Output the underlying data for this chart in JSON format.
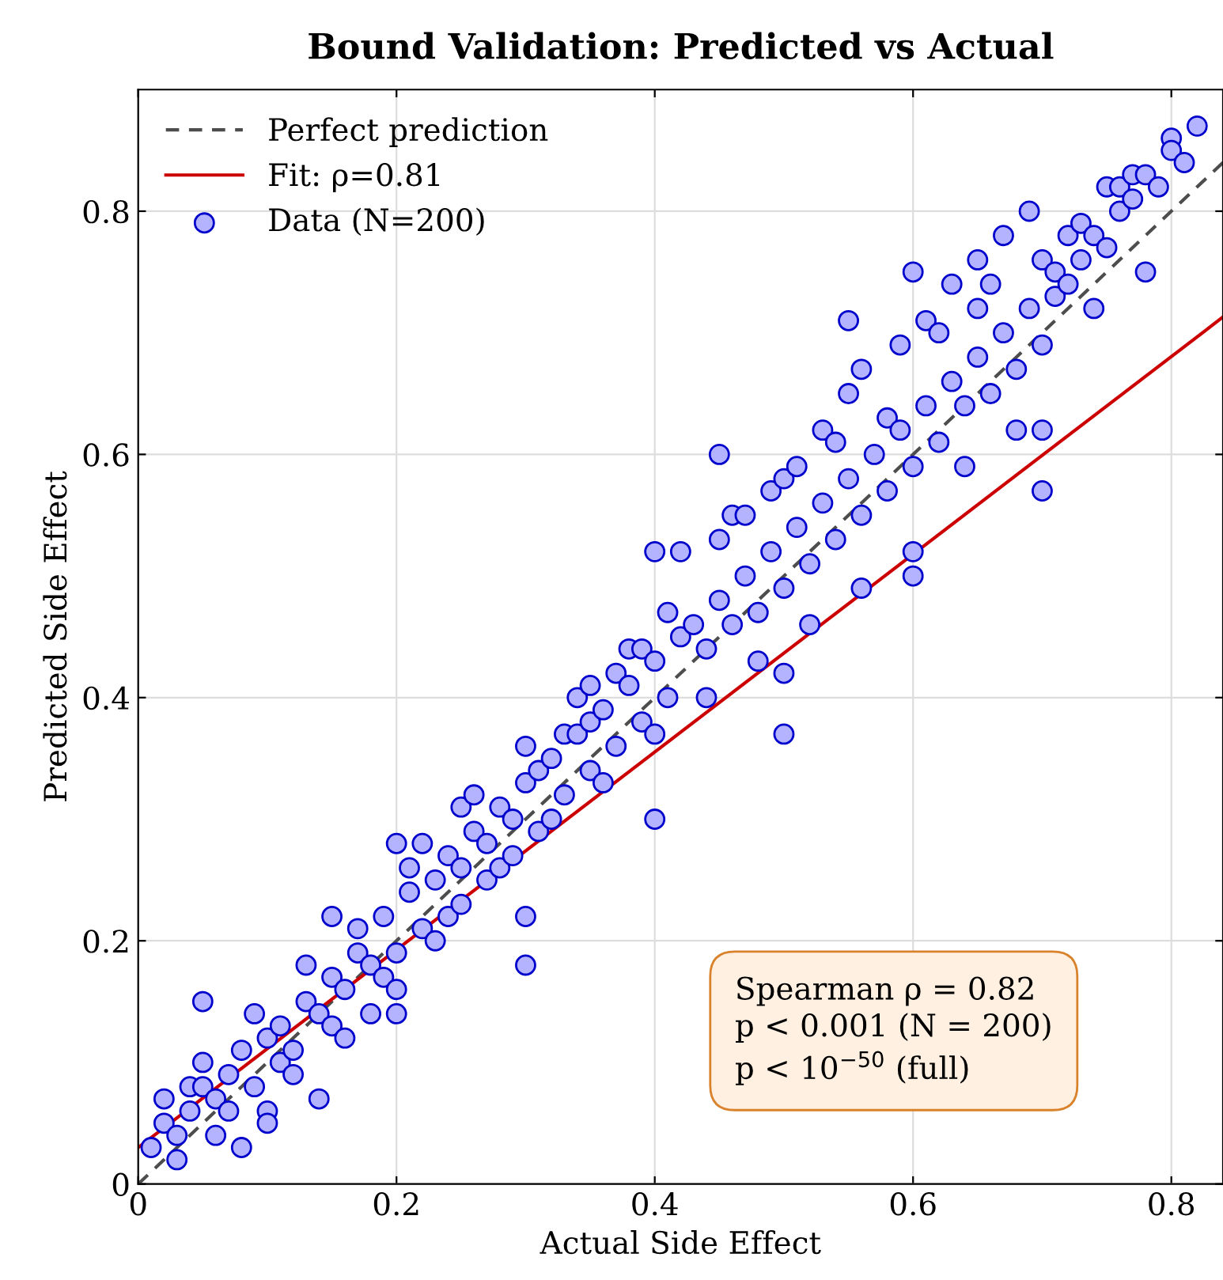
{
  "chart_data": {
    "type": "scatter",
    "title": "Bound Validation: Predicted vs Actual",
    "xlabel": "Actual Side Effect",
    "ylabel": "Predicted Side Effect",
    "xlim": [
      0,
      0.84
    ],
    "ylim": [
      0,
      0.9
    ],
    "xticks": [
      0,
      0.2,
      0.4,
      0.6,
      0.8
    ],
    "yticks": [
      0,
      0.2,
      0.4,
      0.6,
      0.8
    ],
    "grid": true,
    "legend": "top left",
    "annotations": [
      "Spearman ρ = 0.82\np < 0.001 (N = 200)\np < 10$^{−50}$ (full)"
    ],
    "series": [
      {
        "name": "Perfect prediction",
        "type": "line",
        "line_style": "dashed",
        "marker": "none",
        "color": "#4d4d4d",
        "x": [
          0,
          0.84
        ],
        "values": [
          0,
          0.84
        ]
      },
      {
        "name": "Fit: ρ=0.81",
        "type": "line",
        "line_style": "solid",
        "marker": "none",
        "color": "#cc0000",
        "x": [
          0,
          0.84
        ],
        "values": [
          0.03,
          0.713
        ]
      },
      {
        "name": "Data (N=200)",
        "marker": "circle",
        "color": "#b3b3ff",
        "x": [
          0.01,
          0.02,
          0.02,
          0.03,
          0.03,
          0.04,
          0.04,
          0.05,
          0.05,
          0.05,
          0.06,
          0.06,
          0.07,
          0.07,
          0.08,
          0.08,
          0.09,
          0.09,
          0.1,
          0.1,
          0.1,
          0.11,
          0.11,
          0.12,
          0.12,
          0.13,
          0.13,
          0.14,
          0.14,
          0.15,
          0.15,
          0.15,
          0.16,
          0.16,
          0.17,
          0.17,
          0.18,
          0.18,
          0.19,
          0.19,
          0.2,
          0.2,
          0.2,
          0.2,
          0.21,
          0.21,
          0.22,
          0.22,
          0.23,
          0.23,
          0.24,
          0.24,
          0.25,
          0.25,
          0.25,
          0.26,
          0.26,
          0.27,
          0.27,
          0.28,
          0.28,
          0.29,
          0.29,
          0.3,
          0.3,
          0.3,
          0.3,
          0.31,
          0.31,
          0.32,
          0.32,
          0.33,
          0.33,
          0.34,
          0.34,
          0.35,
          0.35,
          0.35,
          0.36,
          0.36,
          0.37,
          0.37,
          0.38,
          0.38,
          0.39,
          0.39,
          0.4,
          0.4,
          0.4,
          0.4,
          0.41,
          0.41,
          0.42,
          0.42,
          0.43,
          0.44,
          0.44,
          0.45,
          0.45,
          0.45,
          0.46,
          0.46,
          0.47,
          0.47,
          0.48,
          0.48,
          0.49,
          0.49,
          0.5,
          0.5,
          0.5,
          0.5,
          0.51,
          0.51,
          0.52,
          0.52,
          0.53,
          0.53,
          0.54,
          0.54,
          0.55,
          0.55,
          0.55,
          0.56,
          0.56,
          0.56,
          0.57,
          0.58,
          0.58,
          0.59,
          0.59,
          0.6,
          0.6,
          0.6,
          0.6,
          0.61,
          0.61,
          0.62,
          0.62,
          0.63,
          0.63,
          0.64,
          0.64,
          0.65,
          0.65,
          0.65,
          0.66,
          0.66,
          0.67,
          0.67,
          0.68,
          0.68,
          0.69,
          0.69,
          0.7,
          0.7,
          0.7,
          0.7,
          0.71,
          0.71,
          0.72,
          0.72,
          0.73,
          0.73,
          0.74,
          0.74,
          0.75,
          0.75,
          0.76,
          0.76,
          0.77,
          0.77,
          0.78,
          0.78,
          0.79,
          0.8,
          0.8,
          0.81,
          0.82
        ],
        "values": [
          0.03,
          0.07,
          0.05,
          0.04,
          0.02,
          0.08,
          0.06,
          0.15,
          0.1,
          0.08,
          0.04,
          0.07,
          0.09,
          0.06,
          0.11,
          0.03,
          0.14,
          0.08,
          0.12,
          0.06,
          0.05,
          0.13,
          0.1,
          0.11,
          0.09,
          0.18,
          0.15,
          0.14,
          0.07,
          0.22,
          0.17,
          0.13,
          0.16,
          0.12,
          0.21,
          0.19,
          0.18,
          0.14,
          0.22,
          0.17,
          0.28,
          0.19,
          0.16,
          0.14,
          0.26,
          0.24,
          0.28,
          0.21,
          0.25,
          0.2,
          0.27,
          0.22,
          0.31,
          0.26,
          0.23,
          0.32,
          0.29,
          0.28,
          0.25,
          0.31,
          0.26,
          0.3,
          0.27,
          0.36,
          0.33,
          0.22,
          0.18,
          0.34,
          0.29,
          0.35,
          0.3,
          0.37,
          0.32,
          0.4,
          0.37,
          0.41,
          0.38,
          0.34,
          0.39,
          0.33,
          0.42,
          0.36,
          0.44,
          0.41,
          0.44,
          0.38,
          0.52,
          0.43,
          0.37,
          0.3,
          0.47,
          0.4,
          0.52,
          0.45,
          0.46,
          0.44,
          0.4,
          0.6,
          0.53,
          0.48,
          0.55,
          0.46,
          0.55,
          0.5,
          0.47,
          0.43,
          0.52,
          0.57,
          0.58,
          0.49,
          0.42,
          0.37,
          0.59,
          0.54,
          0.51,
          0.46,
          0.62,
          0.56,
          0.61,
          0.53,
          0.71,
          0.65,
          0.58,
          0.67,
          0.55,
          0.49,
          0.6,
          0.63,
          0.57,
          0.69,
          0.62,
          0.75,
          0.59,
          0.52,
          0.5,
          0.71,
          0.64,
          0.7,
          0.61,
          0.74,
          0.66,
          0.64,
          0.59,
          0.76,
          0.72,
          0.68,
          0.74,
          0.65,
          0.78,
          0.7,
          0.67,
          0.62,
          0.8,
          0.72,
          0.76,
          0.69,
          0.62,
          0.57,
          0.75,
          0.73,
          0.74,
          0.78,
          0.79,
          0.76,
          0.78,
          0.72,
          0.82,
          0.77,
          0.82,
          0.8,
          0.83,
          0.81,
          0.83,
          0.75,
          0.82,
          0.86,
          0.85,
          0.84,
          0.87
        ]
      }
    ]
  }
}
